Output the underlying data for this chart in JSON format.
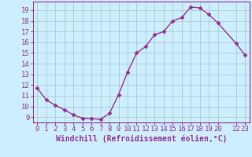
{
  "x": [
    0,
    1,
    2,
    3,
    4,
    5,
    6,
    7,
    8,
    9,
    10,
    11,
    12,
    13,
    14,
    15,
    16,
    17,
    18,
    19,
    20,
    22,
    23
  ],
  "y": [
    11.7,
    10.6,
    10.1,
    9.7,
    9.2,
    8.9,
    8.85,
    8.8,
    9.35,
    11.1,
    13.2,
    15.0,
    15.6,
    16.7,
    17.0,
    18.0,
    18.3,
    19.3,
    19.2,
    18.6,
    17.8,
    15.9,
    14.8
  ],
  "line_color": "#993399",
  "marker": "D",
  "marker_size": 2.5,
  "bg_color": "#cceeff",
  "grid_color": "#aacccc",
  "xlabel": "Windchill (Refroidissement éolien,°C)",
  "xlabel_color": "#993399",
  "tick_color": "#993399",
  "spine_color": "#993399",
  "ylim": [
    8.5,
    19.8
  ],
  "xlim": [
    -0.5,
    23.5
  ],
  "yticks": [
    9,
    10,
    11,
    12,
    13,
    14,
    15,
    16,
    17,
    18,
    19
  ],
  "xticks": [
    0,
    1,
    2,
    3,
    4,
    5,
    6,
    7,
    8,
    9,
    10,
    11,
    12,
    13,
    14,
    15,
    16,
    17,
    18,
    19,
    20,
    22,
    23
  ],
  "xtick_labels": [
    "0",
    "1",
    "2",
    "3",
    "4",
    "5",
    "6",
    "7",
    "8",
    "9",
    "10",
    "11",
    "12",
    "13",
    "14",
    "15",
    "16",
    "17",
    "18",
    "19",
    "20",
    "22",
    "23"
  ],
  "font_size": 6.5,
  "xlabel_fontsize": 7,
  "line_width": 1.0
}
